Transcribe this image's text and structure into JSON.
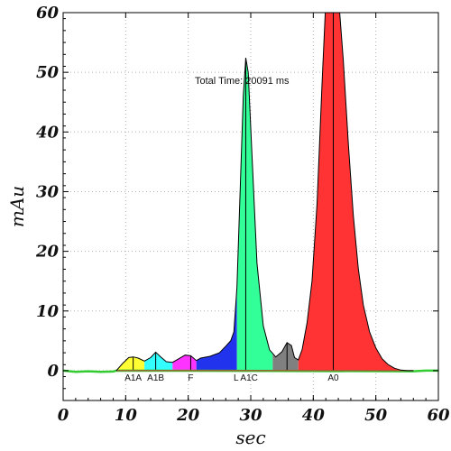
{
  "chart_data": {
    "type": "area",
    "xlabel": "sec",
    "ylabel": "mAu",
    "xlim": [
      0,
      60
    ],
    "ylim": [
      -5,
      60
    ],
    "x_ticks": [
      0,
      10,
      20,
      30,
      40,
      50,
      60
    ],
    "y_ticks": [
      0,
      10,
      20,
      30,
      40,
      50,
      60
    ],
    "grid": true,
    "annotation": "Total Time: 20091 ms",
    "baseline_color": "#33cc33",
    "envelope_color": "#000000",
    "trace": {
      "x": [
        8.5,
        9.5,
        10.5,
        11.2,
        12.0,
        13.0,
        14.0,
        14.8,
        15.6,
        16.5,
        17.5,
        18.5,
        19.5,
        20.4,
        21.3,
        22.0,
        23.5,
        25.0,
        26.0,
        26.8,
        27.3,
        27.8,
        28.3,
        28.8,
        29.2,
        29.6,
        30.2,
        31.0,
        32.0,
        33.0,
        34.0,
        35.0,
        35.8,
        36.5,
        37.0,
        37.6,
        38.2,
        39.0,
        39.8,
        40.6,
        41.4,
        42.0,
        42.6,
        43.2,
        44.0,
        44.8,
        45.6,
        46.4,
        47.2,
        48.0,
        49.0,
        50.0,
        51.0,
        52.0,
        53.0,
        54.0,
        55.0,
        56.0
      ],
      "y": [
        0.0,
        1.2,
        2.2,
        2.3,
        2.1,
        1.6,
        2.2,
        3.1,
        2.3,
        1.5,
        1.4,
        2.0,
        2.6,
        2.5,
        1.7,
        2.1,
        2.4,
        3.0,
        4.1,
        5.0,
        6.5,
        14.0,
        30.0,
        46.0,
        52.4,
        50.0,
        36.0,
        18.0,
        7.5,
        3.5,
        2.3,
        3.2,
        4.7,
        4.2,
        2.2,
        1.8,
        3.5,
        8.0,
        15.0,
        28.0,
        48.0,
        62.0,
        66.0,
        66.0,
        63.0,
        52.0,
        38.0,
        26.0,
        17.0,
        11.0,
        6.5,
        3.8,
        2.0,
        1.0,
        0.4,
        0.1,
        0.0,
        0.0
      ]
    },
    "peaks": [
      {
        "label": "A1A",
        "apex": 11.2,
        "start": 8.5,
        "end": 13.0,
        "color": "#ffff33"
      },
      {
        "label": "A1B",
        "apex": 14.8,
        "start": 13.0,
        "end": 17.5,
        "color": "#33ffff"
      },
      {
        "label": "F",
        "apex": 20.4,
        "start": 17.5,
        "end": 21.3,
        "color": "#ff33ff"
      },
      {
        "label": "L A1C",
        "apex": 29.2,
        "start": 21.3,
        "end": 27.8,
        "color": "#2233ee"
      },
      {
        "label": "",
        "apex": 29.2,
        "start": 27.8,
        "end": 33.5,
        "color": "#33ff99"
      },
      {
        "label": "",
        "apex": 35.8,
        "start": 33.5,
        "end": 37.6,
        "color": "#808080"
      },
      {
        "label": "A0",
        "apex": 43.2,
        "start": 37.6,
        "end": 56.0,
        "color": "#ff3333"
      }
    ],
    "baseline": {
      "x": [
        0,
        2,
        4,
        6,
        8,
        8.5,
        56,
        58,
        60
      ],
      "y": [
        0.0,
        -0.2,
        -0.1,
        -0.2,
        -0.15,
        0.0,
        -0.1,
        0.0,
        0.0
      ]
    }
  }
}
